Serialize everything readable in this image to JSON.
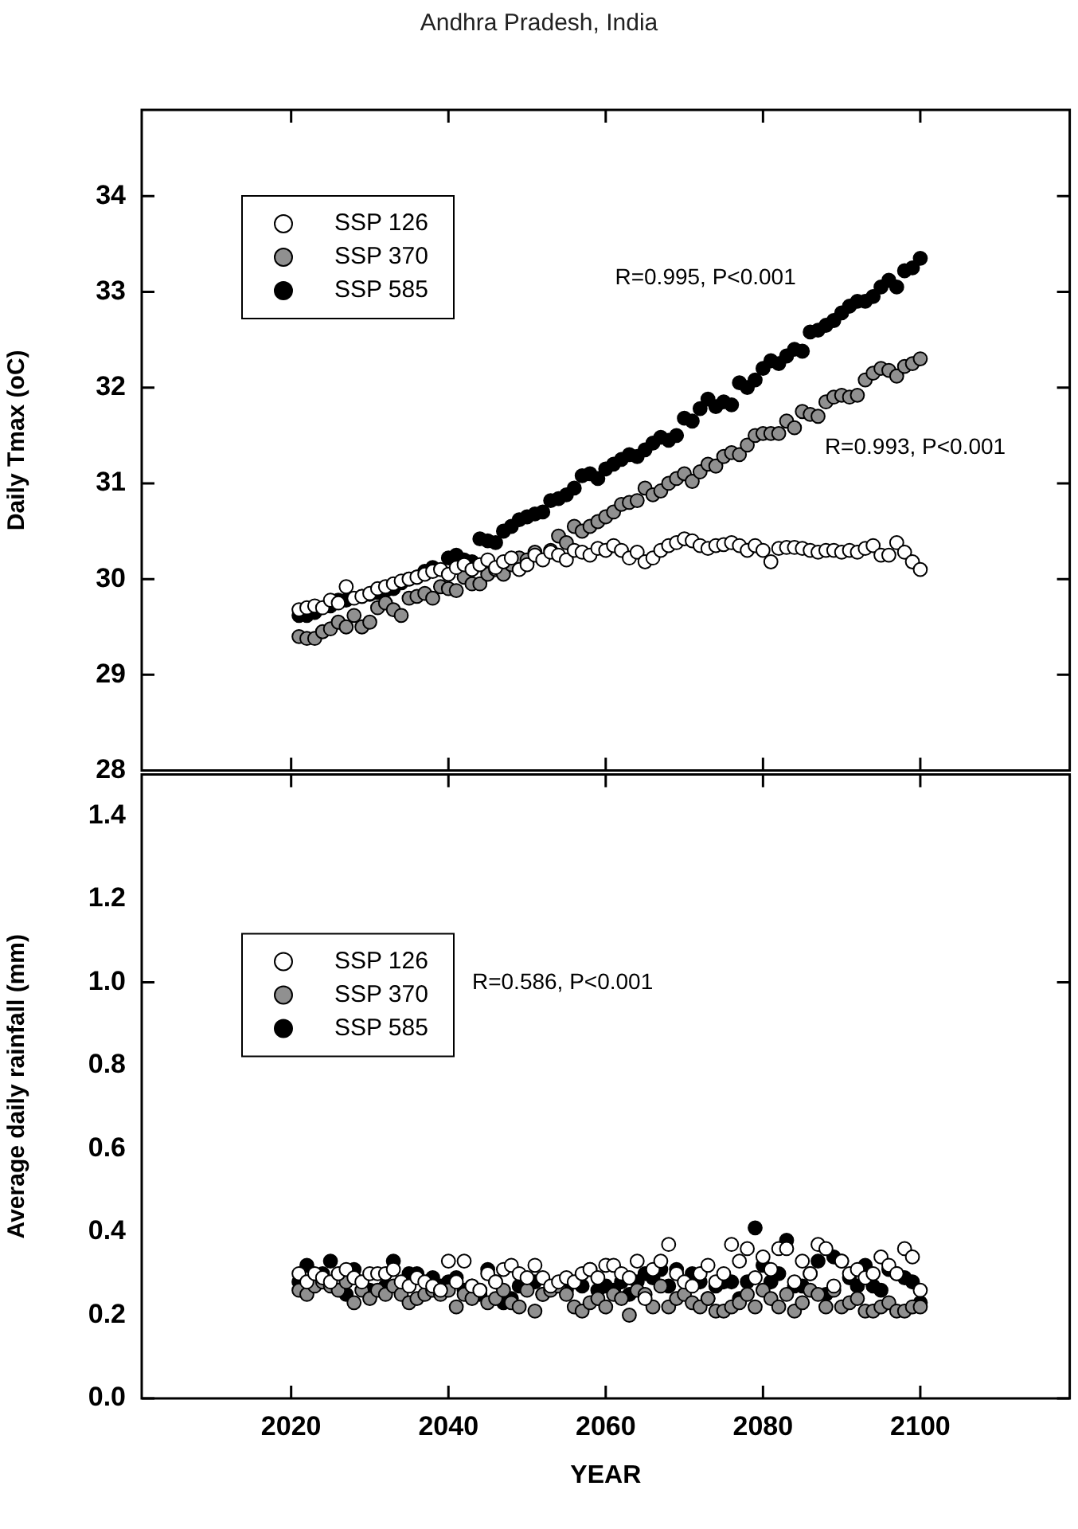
{
  "chart_data": [
    {
      "type": "scatter",
      "title": "Andhra Pradesh, India",
      "ylabel": "Daily Tmax (oC)",
      "xlim": [
        2001,
        2119
      ],
      "xticks": [
        2020,
        2040,
        2060,
        2080,
        2100
      ],
      "ylim": [
        28,
        34.9
      ],
      "yticks": [
        28,
        29,
        30,
        31,
        32,
        33,
        34
      ],
      "tick_labels": "y",
      "grid": false,
      "legend": "top left",
      "marker": "circle",
      "x": [
        2021,
        2022,
        2023,
        2024,
        2025,
        2026,
        2027,
        2028,
        2029,
        2030,
        2031,
        2032,
        2033,
        2034,
        2035,
        2036,
        2037,
        2038,
        2039,
        2040,
        2041,
        2042,
        2043,
        2044,
        2045,
        2046,
        2047,
        2048,
        2049,
        2050,
        2051,
        2052,
        2053,
        2054,
        2055,
        2056,
        2057,
        2058,
        2059,
        2060,
        2061,
        2062,
        2063,
        2064,
        2065,
        2066,
        2067,
        2068,
        2069,
        2070,
        2071,
        2072,
        2073,
        2074,
        2075,
        2076,
        2077,
        2078,
        2079,
        2080,
        2081,
        2082,
        2083,
        2084,
        2085,
        2086,
        2087,
        2088,
        2089,
        2090,
        2091,
        2092,
        2093,
        2094,
        2095,
        2096,
        2097,
        2098,
        2099,
        2100
      ],
      "series": [
        {
          "name": "SSP 126",
          "color": "#ffffff",
          "values": [
            29.68,
            29.7,
            29.72,
            29.7,
            29.78,
            29.75,
            29.92,
            29.8,
            29.82,
            29.85,
            29.9,
            29.92,
            29.95,
            29.98,
            30.0,
            30.02,
            30.05,
            30.08,
            30.1,
            30.05,
            30.12,
            30.15,
            30.1,
            30.15,
            30.2,
            30.12,
            30.18,
            30.22,
            30.1,
            30.15,
            30.25,
            30.2,
            30.28,
            30.25,
            30.2,
            30.3,
            30.28,
            30.25,
            30.32,
            30.3,
            30.35,
            30.3,
            30.22,
            30.28,
            30.18,
            30.22,
            30.3,
            30.35,
            30.38,
            30.42,
            30.4,
            30.35,
            30.32,
            30.35,
            30.36,
            30.38,
            30.35,
            30.3,
            30.35,
            30.3,
            30.18,
            30.32,
            30.33,
            30.33,
            30.32,
            30.3,
            30.28,
            30.3,
            30.3,
            30.28,
            30.3,
            30.28,
            30.32,
            30.35,
            30.25,
            30.25,
            30.38,
            30.28,
            30.18,
            30.1
          ]
        },
        {
          "name": "SSP 370",
          "color": "#909090",
          "values": [
            29.4,
            29.38,
            29.38,
            29.45,
            29.48,
            29.55,
            29.5,
            29.62,
            29.5,
            29.55,
            29.7,
            29.75,
            29.68,
            29.62,
            29.8,
            29.82,
            29.85,
            29.8,
            29.92,
            29.9,
            29.88,
            30.02,
            29.95,
            29.95,
            30.05,
            30.1,
            30.05,
            30.15,
            30.22,
            30.2,
            30.28,
            null,
            30.3,
            30.45,
            30.38,
            30.55,
            30.5,
            30.55,
            30.6,
            30.65,
            30.7,
            30.78,
            30.8,
            30.82,
            30.95,
            30.88,
            30.92,
            31.0,
            31.05,
            31.1,
            31.02,
            31.12,
            31.2,
            31.18,
            31.28,
            31.32,
            31.3,
            31.4,
            31.5,
            31.52,
            31.52,
            31.52,
            31.65,
            31.58,
            31.75,
            31.72,
            31.7,
            31.85,
            31.9,
            31.92,
            31.9,
            31.92,
            32.08,
            32.15,
            32.2,
            32.18,
            32.12,
            32.22,
            32.25,
            32.3
          ]
        },
        {
          "name": "SSP 585",
          "color": "#000000",
          "values": [
            29.62,
            29.62,
            29.65,
            null,
            29.72,
            29.78,
            29.78,
            null,
            29.82,
            29.84,
            29.86,
            29.88,
            29.9,
            29.96,
            30.0,
            30.02,
            30.08,
            30.12,
            null,
            30.22,
            30.25,
            30.2,
            30.18,
            30.42,
            30.4,
            30.38,
            30.5,
            30.55,
            30.62,
            30.65,
            30.68,
            30.7,
            30.82,
            30.84,
            30.88,
            30.95,
            31.08,
            31.1,
            31.05,
            31.15,
            31.2,
            31.25,
            31.3,
            31.28,
            31.35,
            31.42,
            31.48,
            31.45,
            31.5,
            31.68,
            31.65,
            31.78,
            31.88,
            31.8,
            31.85,
            31.82,
            32.05,
            32.0,
            32.08,
            32.2,
            32.28,
            32.25,
            32.33,
            32.4,
            32.38,
            32.58,
            32.6,
            32.65,
            32.7,
            32.78,
            32.85,
            32.9,
            32.9,
            32.95,
            33.05,
            33.12,
            33.05,
            33.22,
            33.25,
            33.35
          ]
        }
      ],
      "annotations": [
        "R=0.995, P<0.001",
        "R=0.993, P<0.001"
      ]
    },
    {
      "type": "scatter",
      "xlabel": "YEAR",
      "ylabel": "Average daily rainfall (mm)",
      "xlim": [
        2001,
        2119
      ],
      "xticks": [
        2020,
        2040,
        2060,
        2080,
        2100
      ],
      "ylim": [
        0,
        1.5
      ],
      "yticks": [
        {
          "value": 0,
          "label": "0.0"
        },
        0.2,
        0.4,
        0.6,
        0.8,
        {
          "value": 1,
          "label": "1.0"
        },
        1.2,
        1.4
      ],
      "grid": false,
      "legend": "top left",
      "marker": "circle",
      "x": [
        2021,
        2022,
        2023,
        2024,
        2025,
        2026,
        2027,
        2028,
        2029,
        2030,
        2031,
        2032,
        2033,
        2034,
        2035,
        2036,
        2037,
        2038,
        2039,
        2040,
        2041,
        2042,
        2043,
        2044,
        2045,
        2046,
        2047,
        2048,
        2049,
        2050,
        2051,
        2052,
        2053,
        2054,
        2055,
        2056,
        2057,
        2058,
        2059,
        2060,
        2061,
        2062,
        2063,
        2064,
        2065,
        2066,
        2067,
        2068,
        2069,
        2070,
        2071,
        2072,
        2073,
        2074,
        2075,
        2076,
        2077,
        2078,
        2079,
        2080,
        2081,
        2082,
        2083,
        2084,
        2085,
        2086,
        2087,
        2088,
        2089,
        2090,
        2091,
        2092,
        2093,
        2094,
        2095,
        2096,
        2097,
        2098,
        2099,
        2100
      ],
      "series": [
        {
          "name": "SSP 126",
          "color": "#ffffff",
          "values": [
            0.3,
            0.28,
            0.3,
            0.29,
            0.28,
            0.3,
            0.31,
            0.29,
            0.28,
            0.3,
            0.3,
            0.3,
            0.31,
            0.28,
            0.27,
            0.29,
            0.28,
            0.27,
            0.26,
            0.33,
            0.28,
            0.33,
            0.27,
            0.26,
            0.3,
            0.28,
            0.31,
            0.32,
            0.3,
            0.29,
            0.32,
            0.29,
            0.27,
            0.28,
            0.29,
            0.28,
            0.3,
            0.31,
            0.29,
            0.32,
            0.32,
            0.3,
            0.29,
            0.33,
            0.24,
            0.31,
            0.33,
            0.37,
            0.3,
            0.28,
            0.27,
            0.3,
            0.32,
            0.28,
            0.3,
            0.37,
            0.33,
            0.36,
            0.29,
            0.34,
            0.31,
            0.36,
            0.36,
            0.28,
            0.33,
            0.3,
            0.37,
            0.36,
            0.27,
            0.33,
            0.3,
            0.31,
            0.29,
            0.3,
            0.34,
            0.32,
            0.3,
            0.36,
            0.34,
            0.26
          ]
        },
        {
          "name": "SSP 370",
          "color": "#909090",
          "values": [
            0.26,
            0.25,
            0.27,
            0.28,
            0.27,
            0.26,
            0.28,
            0.23,
            0.26,
            0.24,
            0.26,
            0.25,
            0.27,
            0.25,
            0.23,
            0.24,
            0.25,
            0.26,
            0.25,
            0.26,
            0.22,
            0.25,
            0.24,
            0.26,
            0.23,
            0.24,
            0.26,
            0.23,
            0.22,
            0.26,
            0.21,
            0.25,
            0.26,
            0.27,
            0.25,
            0.22,
            0.21,
            0.23,
            0.24,
            0.22,
            0.25,
            0.24,
            0.2,
            0.26,
            0.25,
            0.22,
            0.27,
            0.22,
            0.24,
            0.25,
            0.23,
            0.22,
            0.24,
            0.21,
            0.21,
            0.22,
            0.23,
            0.25,
            0.22,
            0.26,
            0.24,
            0.22,
            0.25,
            0.21,
            0.23,
            0.26,
            0.25,
            0.22,
            0.26,
            0.22,
            0.23,
            0.24,
            0.21,
            0.21,
            0.22,
            0.23,
            0.21,
            0.21,
            0.22,
            0.22
          ]
        },
        {
          "name": "SSP 585",
          "color": "#000000",
          "values": [
            0.28,
            0.32,
            null,
            0.3,
            0.33,
            null,
            0.25,
            0.31,
            null,
            0.26,
            null,
            0.27,
            0.33,
            null,
            0.3,
            0.3,
            null,
            0.29,
            0.27,
            0.28,
            0.29,
            0.26,
            0.27,
            0.25,
            0.31,
            0.28,
            0.23,
            0.24,
            0.27,
            null,
            0.28,
            0.25,
            null,
            null,
            0.26,
            null,
            0.27,
            0.31,
            0.26,
            0.27,
            0.26,
            0.28,
            0.25,
            0.28,
            0.3,
            0.29,
            0.31,
            0.27,
            0.31,
            null,
            0.3,
            0.28,
            0.24,
            0.27,
            0.28,
            0.28,
            0.24,
            0.28,
            0.41,
            0.32,
            0.28,
            0.3,
            0.38,
            0.27,
            0.27,
            0.3,
            0.33,
            0.25,
            0.34,
            0.33,
            0.29,
            0.27,
            0.32,
            0.27,
            0.26,
            0.31,
            0.3,
            0.29,
            0.28,
            0.23
          ]
        }
      ],
      "annotations": [
        "R=0.586, P<0.001"
      ]
    }
  ]
}
